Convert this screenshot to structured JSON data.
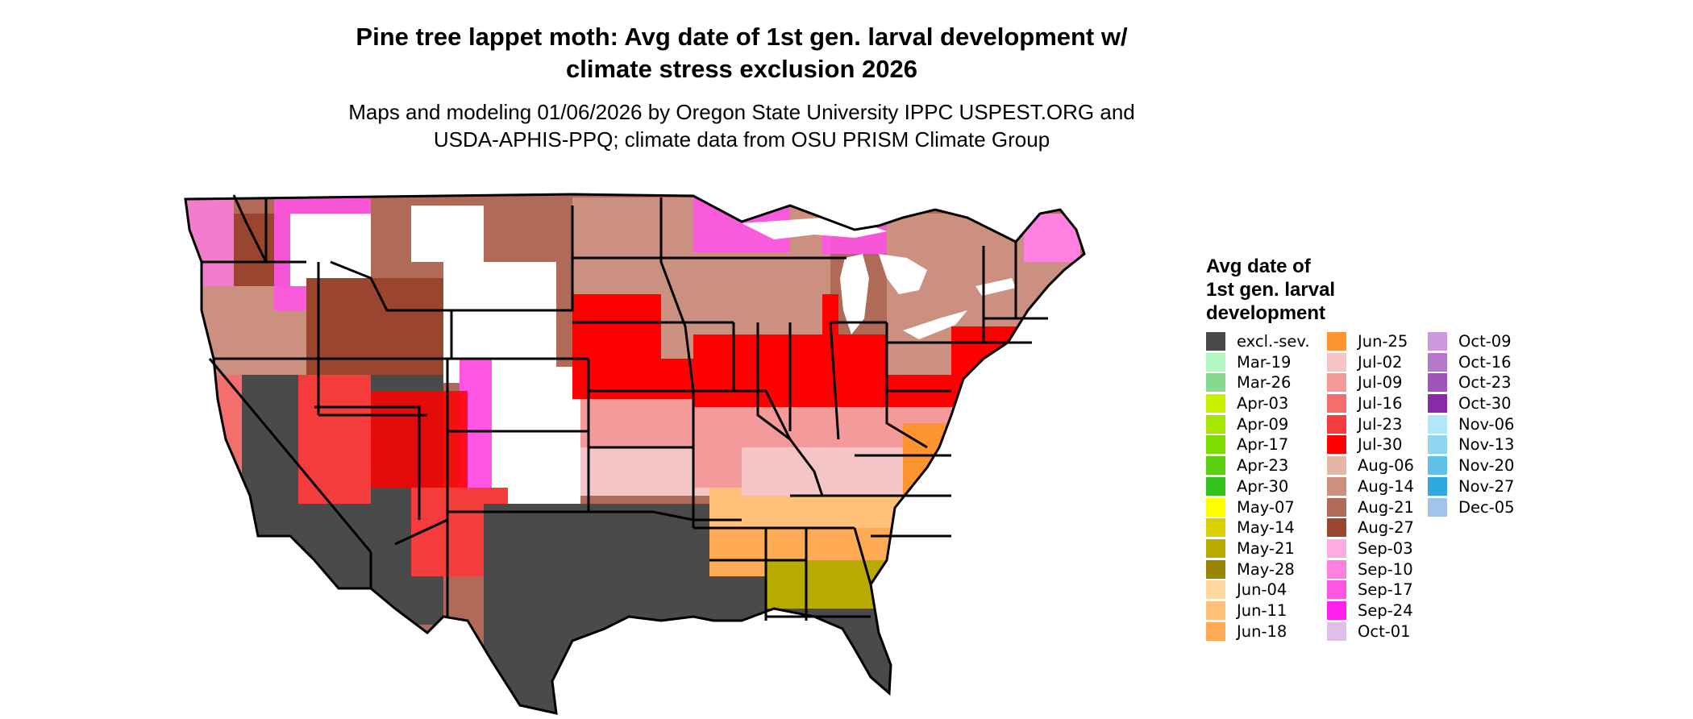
{
  "title": {
    "line1": "Pine tree lappet moth: Avg date of 1st gen. larval development w/",
    "line2": "climate stress exclusion 2026"
  },
  "subtitle": {
    "line1": "Maps and modeling 01/06/2026 by Oregon State University IPPC USPEST.ORG and",
    "line2": "USDA-APHIS-PPQ; climate data from OSU PRISM Climate Group"
  },
  "legend": {
    "title_line1": "Avg date of",
    "title_line2": "1st gen. larval",
    "title_line3": "development",
    "columns": [
      [
        {
          "label": "excl.-sev.",
          "color": "#4a4a4a"
        },
        {
          "label": "Mar-19",
          "color": "#b3f7c2"
        },
        {
          "label": "Mar-26",
          "color": "#86d98f"
        },
        {
          "label": "Apr-03",
          "color": "#c8f000"
        },
        {
          "label": "Apr-09",
          "color": "#a6e600"
        },
        {
          "label": "Apr-17",
          "color": "#7fdc00"
        },
        {
          "label": "Apr-23",
          "color": "#59cf10"
        },
        {
          "label": "Apr-30",
          "color": "#35c21a"
        },
        {
          "label": "May-07",
          "color": "#ffff00"
        },
        {
          "label": "May-14",
          "color": "#d8d000"
        },
        {
          "label": "May-21",
          "color": "#b8aa00"
        },
        {
          "label": "May-28",
          "color": "#9a8400"
        },
        {
          "label": "Jun-04",
          "color": "#ffd8a0"
        },
        {
          "label": "Jun-11",
          "color": "#ffc07a"
        },
        {
          "label": "Jun-18",
          "color": "#ffaa55"
        }
      ],
      [
        {
          "label": "Jun-25",
          "color": "#ff9530"
        },
        {
          "label": "Jul-02",
          "color": "#f5c5c5"
        },
        {
          "label": "Jul-09",
          "color": "#f59a9a"
        },
        {
          "label": "Jul-16",
          "color": "#f56e6e"
        },
        {
          "label": "Jul-23",
          "color": "#f53c3c"
        },
        {
          "label": "Jul-30",
          "color": "#ff0000"
        },
        {
          "label": "Aug-06",
          "color": "#e5b5a5"
        },
        {
          "label": "Aug-14",
          "color": "#cc9080"
        },
        {
          "label": "Aug-21",
          "color": "#b06a58"
        },
        {
          "label": "Aug-27",
          "color": "#9a4530"
        },
        {
          "label": "Sep-03",
          "color": "#ffaae0"
        },
        {
          "label": "Sep-10",
          "color": "#ff80e0"
        },
        {
          "label": "Sep-17",
          "color": "#ff55e5"
        },
        {
          "label": "Sep-24",
          "color": "#ff22ee"
        },
        {
          "label": "Oct-01",
          "color": "#e0c0e8"
        }
      ],
      [
        {
          "label": "Oct-09",
          "color": "#cc99dd"
        },
        {
          "label": "Oct-16",
          "color": "#b778cc"
        },
        {
          "label": "Oct-23",
          "color": "#a055bb"
        },
        {
          "label": "Oct-30",
          "color": "#8a2aaa"
        },
        {
          "label": "Nov-06",
          "color": "#b0e8f8"
        },
        {
          "label": "Nov-13",
          "color": "#8ed5f2"
        },
        {
          "label": "Nov-20",
          "color": "#62c0ea"
        },
        {
          "label": "Nov-27",
          "color": "#30a8e0"
        },
        {
          "label": "Dec-05",
          "color": "#a0c4ea"
        }
      ]
    ]
  }
}
